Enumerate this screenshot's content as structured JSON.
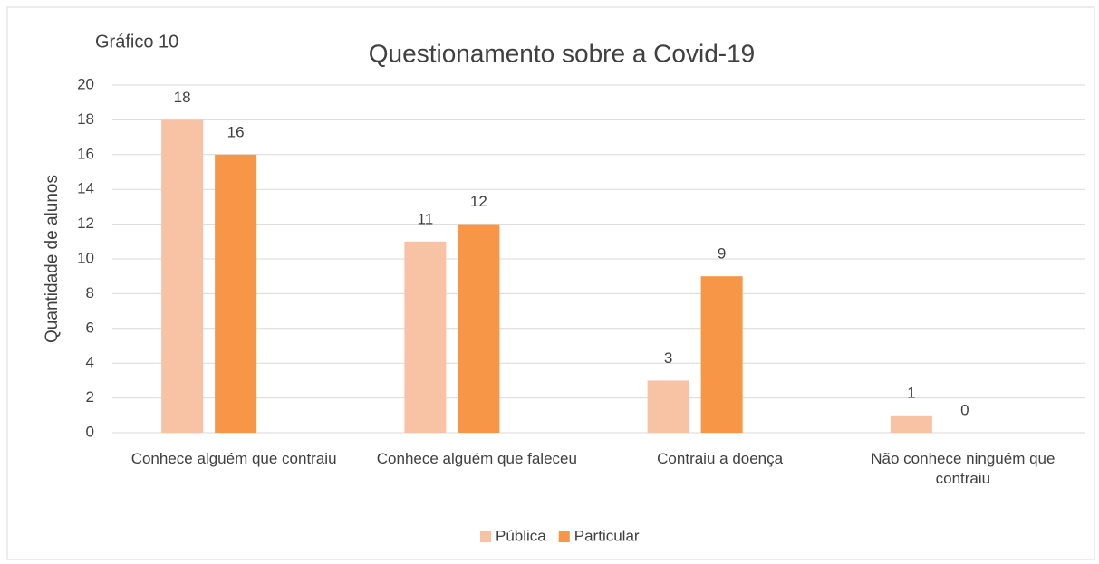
{
  "chart_data": {
    "type": "bar",
    "title": "Questionamento sobre a Covid-19",
    "annotation": "Gráfico 10",
    "y_label": "Quantidade de alunos",
    "categories": [
      "Conhece alguém que contraiu",
      "Conhece alguém que faleceu",
      "Contraiu a doença",
      "Não conhece ninguém que contraiu"
    ],
    "series": [
      {
        "name": "Pública",
        "color": "#f8c3a5",
        "values": [
          18,
          11,
          3,
          1
        ]
      },
      {
        "name": "Particular",
        "color": "#f79646",
        "values": [
          16,
          12,
          9,
          0
        ]
      }
    ],
    "ylim": [
      0,
      20
    ],
    "yticks": [
      0,
      2,
      4,
      6,
      8,
      10,
      12,
      14,
      16,
      18,
      20
    ],
    "grid": true,
    "legend": "bottom"
  }
}
